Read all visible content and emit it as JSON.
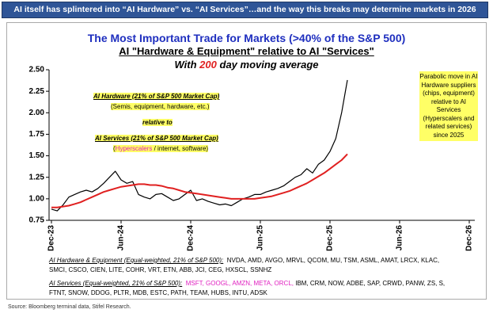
{
  "banner": "AI itself has splintered into “AI Hardware” vs. “AI Services”…and the way this breaks may determine markets in 2026",
  "chart_data": {
    "type": "line",
    "title": "The Most Important Trade for Markets (>40% of the S&P 500)",
    "subtitle": "AI \"Hardware & Equipment\" relative to AI \"Services\"",
    "subtitle2_parts": [
      "With",
      "200",
      "day moving average"
    ],
    "categories": [
      "Dec-23",
      null,
      null,
      null,
      null,
      null,
      null,
      null,
      null,
      null,
      null,
      null,
      "Jun-24",
      null,
      null,
      null,
      null,
      null,
      null,
      null,
      null,
      null,
      null,
      null,
      "Dec-24",
      null,
      null,
      null,
      null,
      null,
      null,
      null,
      null,
      null,
      null,
      null,
      "Jun-25",
      null,
      null,
      null,
      null,
      null,
      null,
      null,
      null,
      null,
      null,
      null,
      "Dec-25",
      null,
      null,
      null,
      null,
      null,
      null,
      null,
      null,
      null,
      null,
      null,
      "Jun-26",
      null,
      null,
      null,
      null,
      null,
      null,
      null,
      null,
      null,
      null,
      null,
      "Dec-26"
    ],
    "series": [
      {
        "color": "#000000",
        "values": [
          0.88,
          0.86,
          0.93,
          1.02,
          1.05,
          1.08,
          1.1,
          1.08,
          1.12,
          1.18,
          1.25,
          1.32,
          1.22,
          1.18,
          1.2,
          1.05,
          1.02,
          1.0,
          1.05,
          1.06,
          1.02,
          0.98,
          1.0,
          1.05,
          1.1,
          0.98,
          1.0,
          0.97,
          0.95,
          0.93,
          0.94,
          0.92,
          0.96,
          1.0,
          1.02,
          1.05,
          1.05,
          1.08,
          1.1,
          1.12,
          1.15,
          1.2,
          1.25,
          1.28,
          1.35,
          1.3,
          1.4,
          1.45,
          1.55,
          1.7,
          2.0,
          2.38,
          null,
          null,
          null,
          null,
          null,
          null,
          null,
          null,
          null,
          null,
          null,
          null,
          null,
          null,
          null,
          null,
          null,
          null,
          null,
          null,
          null
        ]
      },
      {
        "color": "#e02020",
        "values": [
          0.9,
          0.9,
          0.91,
          0.92,
          0.94,
          0.96,
          0.99,
          1.02,
          1.05,
          1.08,
          1.1,
          1.12,
          1.14,
          1.15,
          1.16,
          1.17,
          1.17,
          1.16,
          1.16,
          1.15,
          1.13,
          1.12,
          1.1,
          1.08,
          1.07,
          1.06,
          1.05,
          1.04,
          1.03,
          1.02,
          1.01,
          1.0,
          1.0,
          1.0,
          1.0,
          1.0,
          1.01,
          1.02,
          1.03,
          1.05,
          1.07,
          1.09,
          1.12,
          1.15,
          1.18,
          1.22,
          1.26,
          1.3,
          1.35,
          1.4,
          1.45,
          1.52,
          null,
          null,
          null,
          null,
          null,
          null,
          null,
          null,
          null,
          null,
          null,
          null,
          null,
          null,
          null,
          null,
          null,
          null,
          null,
          null,
          null
        ]
      }
    ],
    "ylim": [
      0.75,
      2.5
    ],
    "yticks": [
      0.75,
      {
        "value": 1,
        "label": "1.00"
      },
      1.25,
      {
        "value": 1.5,
        "label": "1.50"
      },
      1.75,
      {
        "value": 2,
        "label": "2.00"
      },
      2.25,
      {
        "value": 2.5,
        "label": "2.50"
      }
    ],
    "grid": false,
    "annotations": {
      "hardware": "AI Hardware (21% of S&P 500 Market Cap)",
      "hardware_note": "(Semis, equipment, hardware, etc.)",
      "relative": "relative to",
      "services": "AI Services (21% of S&P 500 Market Cap)",
      "services_note_parts": [
        "(",
        "Hyperscalers",
        "/ internet, software)"
      ],
      "right": "Parabolic move in AI Hardware suppliers (chips, equipment) relative to AI Services (Hyperscalers and related services) since 2025"
    }
  },
  "constituents": {
    "hardware_label": "AI Hardware & Equipment (Equal-weighted, 21% of S&P 500):",
    "hardware_line1": "NVDA, AMD, AVGO, MRVL, QCOM, MU, TSM, ASML, AMAT, LRCX, KLAC,",
    "hardware_line2": "SMCI, CSCO, CIEN, LITE, COHR, VRT, ETN, ABB, JCI, CEG, HXSCL, SSNHZ",
    "services_label": "AI Services (Equal-weighted, 21% of S&P 500):",
    "services_highlight": "MSFT, GOOGL, AMZN, META, ORCL,",
    "services_line1": "IBM, CRM, NOW, ADBE, SAP, CRWD, PANW, ZS, S,",
    "services_line2": "FTNT, SNOW, DDOG, PLTR, MDB, ESTC, PATH, TEAM, HUBS, INTU, ADSK"
  },
  "source": "Source: Bloomberg terminal data, Stifel Research."
}
